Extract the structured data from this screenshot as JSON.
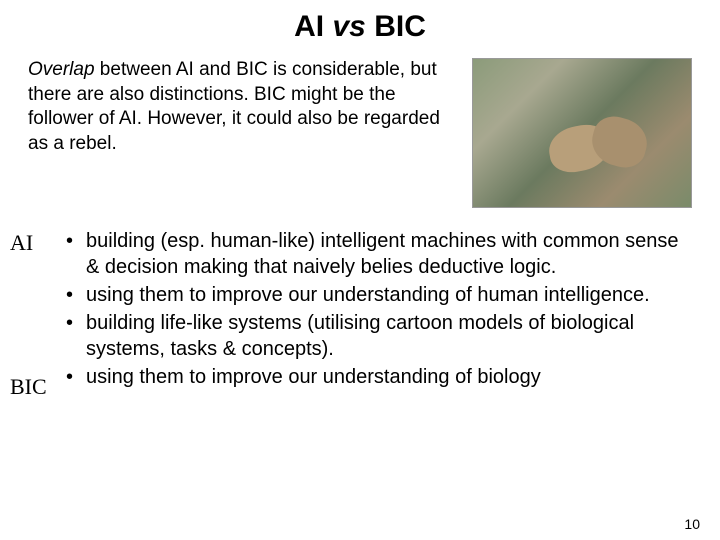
{
  "title_pre": "AI ",
  "title_vs": "vs",
  "title_post": " BIC",
  "intro_overlap": "Overlap",
  "intro_rest": " between AI and BIC is considerable, but there are also distinctions. BIC might be the  follower of AI. However, it could    also be regarded as a rebel.",
  "label_ai": "AI",
  "label_bic": "BIC",
  "bullets": {
    "b1": "building (esp. human-like) intelligent machines with common sense & decision making that naively belies deductive logic.",
    "b2": "using them to improve our understanding of human intelligence.",
    "b3": "building life-like systems (utilising cartoon models of biological systems, tasks & concepts).",
    "b4": "using them to improve our understanding of biology"
  },
  "page_number": "10",
  "colors": {
    "text": "#000000",
    "background": "#ffffff"
  }
}
